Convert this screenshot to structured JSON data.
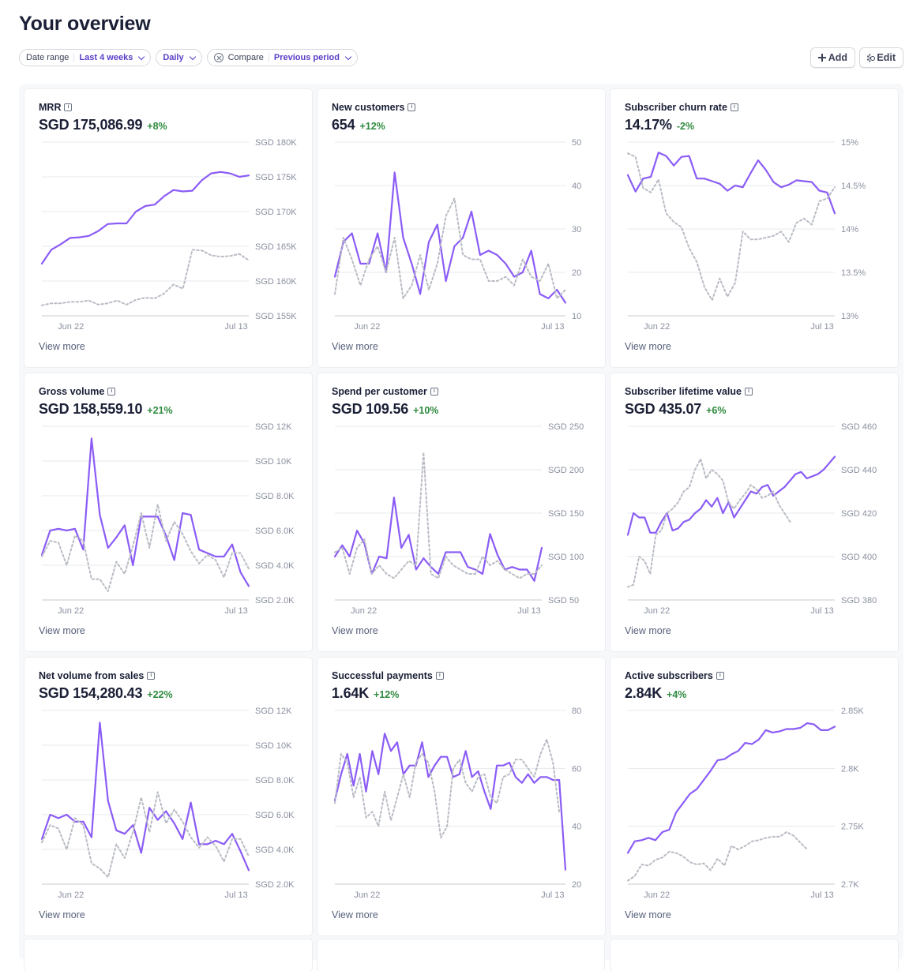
{
  "page_title": "Your overview",
  "filters": {
    "date_range": {
      "label": "Date range",
      "value": "Last 4 weeks"
    },
    "interval": {
      "value": "Daily"
    },
    "compare": {
      "label": "Compare",
      "value": "Previous period"
    }
  },
  "actions": {
    "add_label": "Add",
    "edit_label": "Edit"
  },
  "view_more_label": "View more",
  "colors": {
    "current": "#8b5cf6",
    "previous": "#b9bcc4",
    "positive": "#2e8a3e",
    "accent": "#5a3ec8"
  },
  "chart_data": [
    {
      "type": "line",
      "title": "MRR",
      "value": "SGD 175,086.99",
      "delta": "+8%",
      "y_ticks": [
        "SGD 180K",
        "SGD 175K",
        "SGD 170K",
        "SGD 165K",
        "SGD 160K",
        "SGD 155K"
      ],
      "ylim": [
        155,
        180
      ],
      "x_ticks": [
        "Jun 22",
        "Jul 13"
      ],
      "grid": true,
      "series": [
        {
          "style": "solid",
          "values": [
            162.5,
            164.5,
            165.3,
            166.2,
            166.3,
            166.5,
            167.2,
            168.2,
            168.3,
            168.3,
            170.0,
            170.8,
            171.0,
            172.2,
            173.1,
            172.9,
            173.0,
            174.5,
            175.5,
            175.7,
            175.5,
            175.0,
            175.2
          ]
        },
        {
          "style": "dashed",
          "values": [
            156.5,
            156.8,
            156.8,
            157.0,
            157.0,
            157.2,
            156.6,
            156.8,
            157.2,
            156.6,
            157.3,
            157.6,
            157.5,
            158.2,
            159.5,
            158.9,
            164.5,
            164.4,
            163.7,
            163.5,
            163.6,
            163.9,
            163.0
          ]
        }
      ]
    },
    {
      "type": "line",
      "title": "New customers",
      "value": "654",
      "delta": "+12%",
      "y_ticks": [
        "50",
        "40",
        "30",
        "20",
        "10"
      ],
      "ylim": [
        10,
        50
      ],
      "x_ticks": [
        "Jun 22",
        "Jul 13"
      ],
      "grid": true,
      "series": [
        {
          "style": "solid",
          "values": [
            19,
            27,
            29,
            22,
            22,
            29,
            20,
            43,
            28,
            22,
            15,
            27,
            31,
            18,
            26,
            28,
            34,
            24,
            25,
            24,
            22,
            19,
            20,
            25,
            15,
            14,
            16,
            13
          ]
        },
        {
          "style": "dashed",
          "values": [
            15,
            28,
            23,
            17,
            23,
            26,
            20,
            28,
            14,
            17,
            24,
            16,
            22,
            33,
            37,
            24,
            23,
            23,
            18,
            18,
            19,
            17,
            23,
            19,
            18,
            22,
            14,
            16
          ]
        }
      ]
    },
    {
      "type": "line",
      "title": "Subscriber churn rate",
      "value": "14.17%",
      "delta": "-2%",
      "y_ticks": [
        "15%",
        "14.5%",
        "14%",
        "13.5%",
        "13%"
      ],
      "ylim": [
        13,
        15
      ],
      "x_ticks": [
        "Jun 22",
        "Jul 13"
      ],
      "grid": true,
      "series": [
        {
          "style": "solid",
          "values": [
            14.62,
            14.43,
            14.58,
            14.6,
            14.88,
            14.84,
            14.73,
            14.83,
            14.84,
            14.58,
            14.58,
            14.55,
            14.52,
            14.44,
            14.5,
            14.48,
            14.64,
            14.79,
            14.68,
            14.54,
            14.48,
            14.51,
            14.56,
            14.55,
            14.54,
            14.44,
            14.42,
            14.18
          ]
        },
        {
          "style": "dashed",
          "values": [
            14.87,
            14.83,
            14.47,
            14.42,
            14.57,
            14.18,
            14.08,
            14.02,
            13.78,
            13.62,
            13.33,
            13.18,
            13.43,
            13.22,
            13.38,
            13.97,
            13.88,
            13.88,
            13.9,
            13.92,
            13.97,
            13.85,
            14.07,
            14.12,
            14.05,
            14.32,
            14.35,
            14.48
          ]
        }
      ]
    },
    {
      "type": "line",
      "title": "Gross volume",
      "value": "SGD 158,559.10",
      "delta": "+21%",
      "y_ticks": [
        "SGD 12K",
        "SGD 10K",
        "SGD 8.0K",
        "SGD 6.0K",
        "SGD 4.0K",
        "SGD 2.0K"
      ],
      "ylim": [
        2,
        12
      ],
      "x_ticks": [
        "Jun 22",
        "Jul 13"
      ],
      "grid": true,
      "series": [
        {
          "style": "solid",
          "values": [
            4.6,
            6.0,
            6.1,
            6.0,
            6.1,
            4.9,
            11.3,
            6.9,
            5.0,
            5.6,
            6.3,
            4.0,
            6.8,
            6.8,
            6.8,
            5.7,
            4.3,
            7.0,
            6.9,
            4.9,
            4.7,
            4.5,
            4.5,
            5.2,
            3.6,
            2.8
          ]
        },
        {
          "style": "dashed",
          "values": [
            4.5,
            5.4,
            5.3,
            4.0,
            5.7,
            5.4,
            3.2,
            3.2,
            2.5,
            4.2,
            3.5,
            5.1,
            7.0,
            5.0,
            7.5,
            5.4,
            6.5,
            5.8,
            4.8,
            4.1,
            4.6,
            4.3,
            3.3,
            4.7,
            4.7,
            3.8
          ]
        }
      ]
    },
    {
      "type": "line",
      "title": "Spend per customer",
      "value": "SGD 109.56",
      "delta": "+10%",
      "y_ticks": [
        "SGD 250",
        "SGD 200",
        "SGD 150",
        "SGD 100",
        "SGD 50"
      ],
      "ylim": [
        50,
        250
      ],
      "x_ticks": [
        "Jun 22",
        "Jul 13"
      ],
      "grid": true,
      "series": [
        {
          "style": "solid",
          "values": [
            100,
            113,
            100,
            130,
            115,
            80,
            100,
            98,
            168,
            110,
            125,
            85,
            98,
            88,
            80,
            105,
            105,
            105,
            88,
            85,
            80,
            126,
            102,
            85,
            88,
            85,
            85,
            72,
            110
          ]
        },
        {
          "style": "dashed",
          "values": [
            105,
            110,
            80,
            110,
            120,
            80,
            90,
            80,
            75,
            85,
            95,
            90,
            220,
            80,
            75,
            100,
            90,
            85,
            80,
            80,
            100,
            90,
            95,
            85,
            80,
            75,
            80,
            80,
            90
          ]
        }
      ]
    },
    {
      "type": "line",
      "title": "Subscriber lifetime value",
      "value": "SGD 435.07",
      "delta": "+6%",
      "y_ticks": [
        "SGD 460",
        "SGD 440",
        "SGD 420",
        "SGD 400",
        "SGD 380"
      ],
      "ylim": [
        380,
        460
      ],
      "x_ticks": [
        "Jun 22",
        "Jul 13"
      ],
      "grid": true,
      "series": [
        {
          "style": "solid",
          "values": [
            410,
            420,
            418,
            418,
            411,
            411,
            416,
            420,
            412,
            413,
            416,
            417,
            420,
            422,
            426,
            423,
            427,
            420,
            425,
            418,
            422,
            426,
            430,
            429,
            432,
            433,
            428,
            430,
            432,
            435,
            438,
            439,
            436,
            437,
            438,
            440,
            443,
            446
          ]
        },
        {
          "style": "dashed",
          "values": [
            386,
            387,
            400,
            398,
            392,
            410,
            412,
            420,
            422,
            425,
            430,
            432,
            440,
            445,
            436,
            440,
            438,
            435,
            425,
            422,
            426,
            429,
            433,
            431,
            427,
            428,
            430,
            424,
            420,
            416
          ]
        }
      ]
    },
    {
      "type": "line",
      "title": "Net volume from sales",
      "value": "SGD 154,280.43",
      "delta": "+22%",
      "y_ticks": [
        "SGD 12K",
        "SGD 10K",
        "SGD 8.0K",
        "SGD 6.0K",
        "SGD 4.0K",
        "SGD 2.0K"
      ],
      "ylim": [
        2,
        12
      ],
      "x_ticks": [
        "Jun 22",
        "Jul 13"
      ],
      "grid": true,
      "series": [
        {
          "style": "solid",
          "values": [
            4.6,
            6.0,
            5.8,
            6.0,
            5.6,
            5.6,
            4.7,
            11.3,
            6.8,
            5.1,
            4.9,
            5.4,
            3.8,
            6.4,
            5.7,
            6.2,
            5.5,
            4.6,
            6.7,
            4.3,
            4.3,
            4.5,
            4.3,
            4.9,
            3.9,
            2.8
          ]
        },
        {
          "style": "dashed",
          "values": [
            4.4,
            5.4,
            5.2,
            4.0,
            5.8,
            5.4,
            3.2,
            2.9,
            2.4,
            4.3,
            3.5,
            5.0,
            7.0,
            5.0,
            7.3,
            5.5,
            6.3,
            5.6,
            4.7,
            4.1,
            4.7,
            4.2,
            3.3,
            4.6,
            4.6,
            3.6
          ]
        }
      ]
    },
    {
      "type": "line",
      "title": "Successful payments",
      "value": "1.64K",
      "delta": "+12%",
      "y_ticks": [
        "80",
        "60",
        "40",
        "20"
      ],
      "ylim": [
        20,
        80
      ],
      "x_ticks": [
        "Jun 22",
        "Jul 13"
      ],
      "grid": true,
      "series": [
        {
          "style": "solid",
          "values": [
            49,
            58,
            65,
            54,
            65,
            52,
            66,
            58,
            72,
            66,
            69,
            58,
            61,
            61,
            69,
            57,
            61,
            64,
            64,
            57,
            58,
            66,
            57,
            59,
            52,
            46,
            61,
            61,
            62,
            57,
            55,
            58,
            55,
            57,
            57,
            56,
            56,
            25
          ]
        },
        {
          "style": "dashed",
          "values": [
            48,
            65,
            62,
            50,
            57,
            43,
            45,
            40,
            52,
            42,
            50,
            58,
            50,
            62,
            65,
            62,
            52,
            36,
            40,
            60,
            63,
            55,
            52,
            57,
            58,
            50,
            48,
            57,
            58,
            63,
            63,
            60,
            57,
            65,
            70,
            62,
            45
          ]
        }
      ]
    },
    {
      "type": "line",
      "title": "Active subscribers",
      "value": "2.84K",
      "delta": "+4%",
      "y_ticks": [
        "2.85K",
        "2.8K",
        "2.75K",
        "2.7K"
      ],
      "ylim": [
        2.7,
        2.85
      ],
      "x_ticks": [
        "Jun 22",
        "Jul 13"
      ],
      "grid": true,
      "series": [
        {
          "style": "solid",
          "values": [
            2.727,
            2.737,
            2.738,
            2.74,
            2.738,
            2.745,
            2.747,
            2.762,
            2.77,
            2.778,
            2.782,
            2.79,
            2.798,
            2.807,
            2.808,
            2.812,
            2.815,
            2.822,
            2.821,
            2.825,
            2.833,
            2.831,
            2.832,
            2.834,
            2.834,
            2.835,
            2.839,
            2.838,
            2.833,
            2.833,
            2.836
          ]
        },
        {
          "style": "dashed",
          "values": [
            2.703,
            2.707,
            2.717,
            2.716,
            2.721,
            2.723,
            2.728,
            2.727,
            2.724,
            2.719,
            2.717,
            2.718,
            2.712,
            2.722,
            2.716,
            2.733,
            2.73,
            2.733,
            2.737,
            2.738,
            2.74,
            2.741,
            2.741,
            2.745,
            2.742,
            2.736,
            2.73
          ]
        }
      ]
    }
  ]
}
